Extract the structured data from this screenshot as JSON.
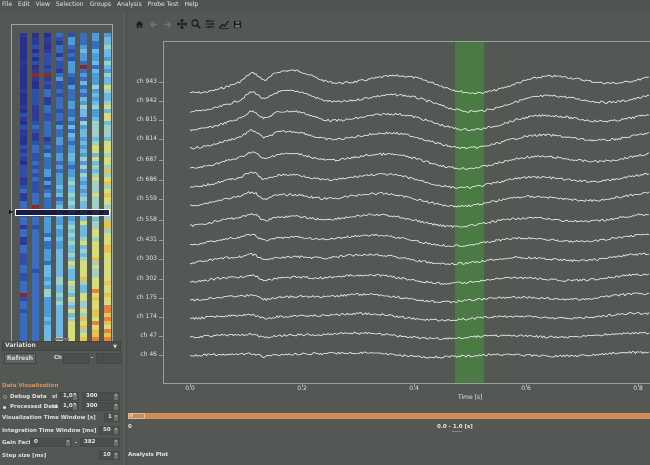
{
  "menubar": {
    "items": [
      "File",
      "Edit",
      "View",
      "Selection",
      "Groups",
      "Analysis",
      "Probe Test",
      "Help"
    ]
  },
  "toolbar": {
    "icons": [
      "home-icon",
      "back-arrow-icon",
      "forward-arrow-icon",
      "pan-icon",
      "zoom-icon",
      "configure-subplots-icon",
      "edit-axis-icon",
      "save-icon"
    ]
  },
  "sidebar": {
    "heatmap": {
      "columns": 8,
      "colors": {
        "low": "#2b3b9a",
        "mid": "#4f9bd6",
        "high": "#e8d25a",
        "hot": "#d9642f",
        "bad": "#8b2a20",
        "selector": "#ffffff"
      }
    },
    "variation_combo": {
      "value": "Variation"
    },
    "refresh_button": {
      "label": "Refresh"
    },
    "ch_label": "Ch",
    "ch_from": "",
    "ch_dash": "-",
    "ch_to": "",
    "data_visualization": {
      "title": "Data Visualization",
      "debug": {
        "label": "Debug Data",
        "checked": false,
        "unit": "sl",
        "min": "1,00",
        "max": "300"
      },
      "processed": {
        "label": "Processed Data",
        "checked": true,
        "unit": "sl",
        "min": "1,00",
        "max": "300"
      },
      "viz_window": {
        "label": "Visualization Time Window [s]",
        "value": "1"
      },
      "integration_window": {
        "label": "Integration Time Window [ms]",
        "value": "50"
      },
      "gain_factor": {
        "label": "Gain Factor",
        "min": "0",
        "dash": "-",
        "max": "382"
      },
      "step_size": {
        "label": "Step size [ms]",
        "value": "10"
      }
    }
  },
  "plot": {
    "channels": [
      "ch 943",
      "ch 942",
      "ch 815",
      "ch 814",
      "ch 687",
      "ch 686",
      "ch 559",
      "ch 558",
      "ch 431",
      "ch 303",
      "ch 302",
      "ch 175",
      "ch 174",
      "ch 47",
      "ch 46"
    ],
    "x_ticks": [
      "0.0",
      "0.2",
      "0.4",
      "0.6",
      "0.8"
    ],
    "x_label": "Time [s]",
    "highlight_color": "#4b7a45",
    "trace_color": "#f2f2f2",
    "background": "#535855"
  },
  "range_slider": {
    "handle_label": "0",
    "zero_label": "0",
    "range_text": "0.0 - 1.0 [s]",
    "bar_color": "#d08b5a"
  },
  "analysis_plot": {
    "label": "Analysis Plot"
  }
}
